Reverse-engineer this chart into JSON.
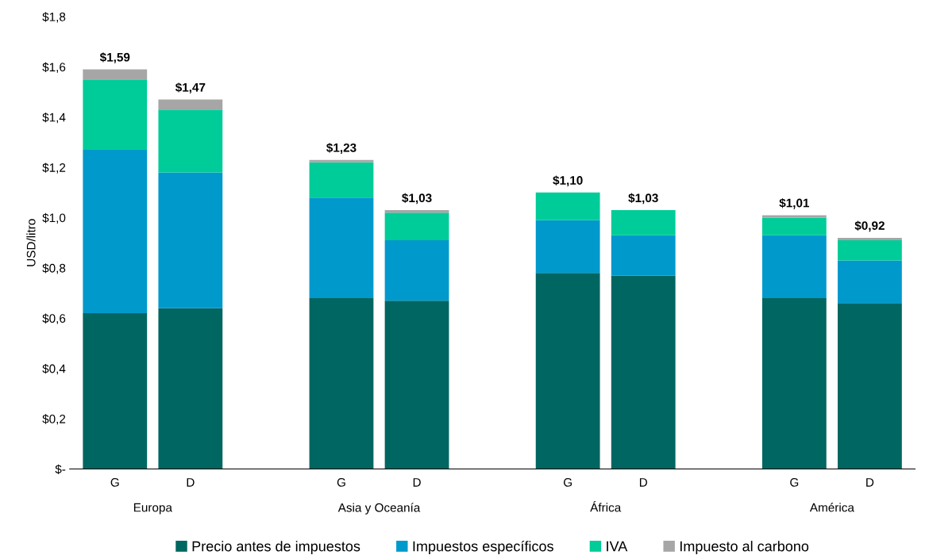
{
  "chart_data": {
    "type": "bar",
    "stacked": true,
    "ylabel": "USD/litro",
    "categories": [
      "G",
      "D",
      null,
      "G",
      "D",
      null,
      "G",
      "D",
      null,
      "G",
      "D"
    ],
    "series": [
      {
        "name": "Precio antes de impuestos",
        "color": "#006661",
        "values": [
          0.62,
          0.64,
          null,
          0.68,
          0.67,
          null,
          0.78,
          0.77,
          null,
          0.68,
          0.66
        ]
      },
      {
        "name": "Impuestos específicos",
        "color": "#0099cc",
        "values": [
          0.65,
          0.54,
          null,
          0.4,
          0.24,
          null,
          0.21,
          0.16,
          null,
          0.25,
          0.17
        ]
      },
      {
        "name": "IVA",
        "color": "#00cc99",
        "values": [
          0.28,
          0.25,
          null,
          0.14,
          0.11,
          null,
          0.11,
          0.1,
          null,
          0.07,
          0.08
        ]
      },
      {
        "name": "Impuesto al carbono",
        "color": "#a6a6a6",
        "values": [
          0.04,
          0.04,
          null,
          0.01,
          0.01,
          null,
          0,
          0,
          null,
          0.01,
          0.01
        ]
      }
    ],
    "totals": [
      "$1,59",
      "$1,47",
      null,
      "$1,23",
      "$1,03",
      null,
      "$1,10",
      "$1,03",
      null,
      "$1,01",
      "$0,92"
    ],
    "annotations": [
      "Europa",
      "Asia y Oceanía",
      "África",
      "América"
    ],
    "ylim": [
      0,
      1.8
    ],
    "yticks": [
      {
        "value": 0,
        "label": "$-"
      },
      {
        "value": 0.2,
        "label": "$0,2"
      },
      {
        "value": 0.4,
        "label": "$0,4"
      },
      {
        "value": 0.6,
        "label": "$0,6"
      },
      {
        "value": 0.8,
        "label": "$0,8"
      },
      {
        "value": 1.0,
        "label": "$1,0"
      },
      {
        "value": 1.2,
        "label": "$1,2"
      },
      {
        "value": 1.4,
        "label": "$1,4"
      },
      {
        "value": 1.6,
        "label": "$1,6"
      },
      {
        "value": 1.8,
        "label": "$1,8"
      }
    ],
    "grid": false,
    "legend": "bottom"
  }
}
